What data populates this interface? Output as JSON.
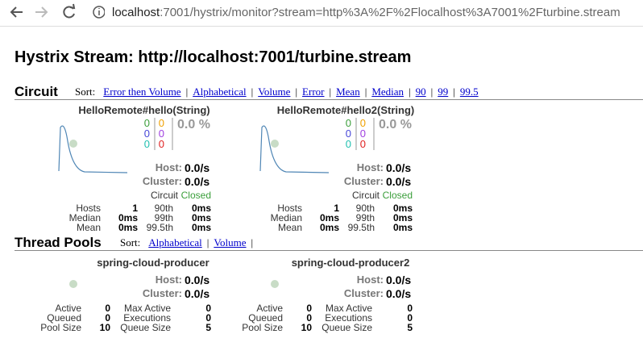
{
  "browser": {
    "url_host": "localhost",
    "url_path": ":7001/hystrix/monitor?stream=http%3A%2F%2Flocalhost%3A7001%2Fturbine.stream"
  },
  "title": "Hystrix Stream: http://localhost:7001/turbine.stream",
  "circuit": {
    "heading": "Circuit",
    "sort_label": "Sort:",
    "separator": "|",
    "sort_options": [
      "Error then Volume",
      "Alphabetical",
      "Volume",
      "Error",
      "Mean",
      "Median",
      "90",
      "99",
      "99.5"
    ],
    "cards": [
      {
        "name": "HelloRemote#hello(String)",
        "counts": [
          [
            0,
            0,
            0
          ],
          [
            0,
            0,
            0
          ]
        ],
        "error_pct": "0.0 %",
        "host_label": "Host:",
        "host_rate": "0.0/s",
        "cluster_label": "Cluster:",
        "cluster_rate": "0.0/s",
        "circuit_label": "Circuit",
        "circuit_status": "Closed",
        "stats": [
          [
            "Hosts",
            1,
            "90th",
            "0ms"
          ],
          [
            "Median",
            "0ms",
            "99th",
            "0ms"
          ],
          [
            "Mean",
            "0ms",
            "99.5th",
            "0ms"
          ]
        ]
      },
      {
        "name": "HelloRemote#hello2(String)",
        "counts": [
          [
            0,
            0,
            0
          ],
          [
            0,
            0,
            0
          ]
        ],
        "error_pct": "0.0 %",
        "host_label": "Host:",
        "host_rate": "0.0/s",
        "cluster_label": "Cluster:",
        "cluster_rate": "0.0/s",
        "circuit_label": "Circuit",
        "circuit_status": "Closed",
        "stats": [
          [
            "Hosts",
            1,
            "90th",
            "0ms"
          ],
          [
            "Median",
            "0ms",
            "99th",
            "0ms"
          ],
          [
            "Mean",
            "0ms",
            "99.5th",
            "0ms"
          ]
        ]
      }
    ]
  },
  "thread_pools": {
    "heading": "Thread Pools",
    "sort_label": "Sort:",
    "separator": "|",
    "sort_options": [
      "Alphabetical",
      "Volume"
    ],
    "cards": [
      {
        "name": "spring-cloud-producer",
        "host_label": "Host:",
        "host_rate": "0.0/s",
        "cluster_label": "Cluster:",
        "cluster_rate": "0.0/s",
        "stats": [
          [
            "Active",
            0,
            "Max Active",
            0
          ],
          [
            "Queued",
            0,
            "Executions",
            0
          ],
          [
            "Pool Size",
            10,
            "Queue Size",
            5
          ]
        ]
      },
      {
        "name": "spring-cloud-producer2",
        "host_label": "Host:",
        "host_rate": "0.0/s",
        "cluster_label": "Cluster:",
        "cluster_rate": "0.0/s",
        "stats": [
          [
            "Active",
            0,
            "Max Active",
            0
          ],
          [
            "Queued",
            0,
            "Executions",
            0
          ],
          [
            "Pool Size",
            10,
            "Queue Size",
            5
          ]
        ]
      }
    ]
  }
}
